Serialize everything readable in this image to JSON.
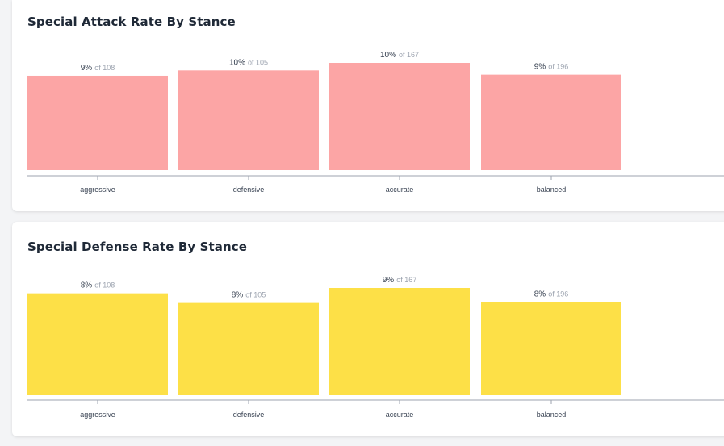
{
  "chart_data": [
    {
      "type": "bar",
      "title": "Special Attack Rate By Stance",
      "categories": [
        "aggressive",
        "defensive",
        "accurate",
        "balanced"
      ],
      "values": [
        9,
        10,
        10,
        9
      ],
      "totals": [
        108,
        105,
        167,
        196
      ],
      "bar_heights": [
        0.88,
        0.93,
        1.0,
        0.89
      ],
      "value_suffix": "%",
      "total_prefix": "of",
      "color": "#fca5a5",
      "xlabel": "",
      "ylabel": "",
      "grid": false
    },
    {
      "type": "bar",
      "title": "Special Defense Rate By Stance",
      "categories": [
        "aggressive",
        "defensive",
        "accurate",
        "balanced"
      ],
      "values": [
        8,
        8,
        9,
        8
      ],
      "totals": [
        108,
        105,
        167,
        196
      ],
      "bar_heights": [
        0.95,
        0.86,
        1.0,
        0.87
      ],
      "value_suffix": "%",
      "total_prefix": "of",
      "color": "#fde047",
      "xlabel": "",
      "ylabel": "",
      "grid": false
    }
  ]
}
